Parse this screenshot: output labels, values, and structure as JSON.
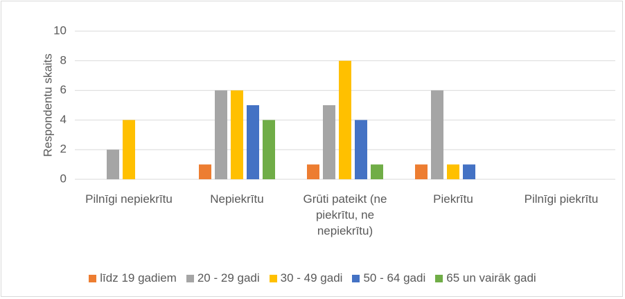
{
  "chart_data": {
    "type": "bar",
    "y_label": "Respondentu skaits",
    "categories": [
      "Pilnīgi nepiekrītu",
      "Nepiekrītu",
      "Grūti pateikt (ne piekrītu, ne nepiekrītu)",
      "Piekrītu",
      "Pilnīgi piekrītu"
    ],
    "series": [
      {
        "name": "līdz 19 gadiem",
        "color": "#ED7D31",
        "values": [
          0,
          1,
          1,
          1,
          0
        ]
      },
      {
        "name": "20 - 29 gadi",
        "color": "#A5A5A5",
        "values": [
          2,
          6,
          5,
          6,
          0
        ]
      },
      {
        "name": "30 - 49 gadi",
        "color": "#FFC000",
        "values": [
          4,
          6,
          8,
          1,
          0
        ]
      },
      {
        "name": "50 - 64 gadi",
        "color": "#4472C4",
        "values": [
          0,
          5,
          4,
          1,
          0
        ]
      },
      {
        "name": "65 un vairāk gadi",
        "color": "#70AD47",
        "values": [
          0,
          4,
          1,
          0,
          0
        ]
      }
    ],
    "ylim": [
      0,
      10
    ],
    "yticks": [
      0,
      2,
      4,
      6,
      8,
      10
    ],
    "grid": true,
    "legend": "bottom"
  }
}
